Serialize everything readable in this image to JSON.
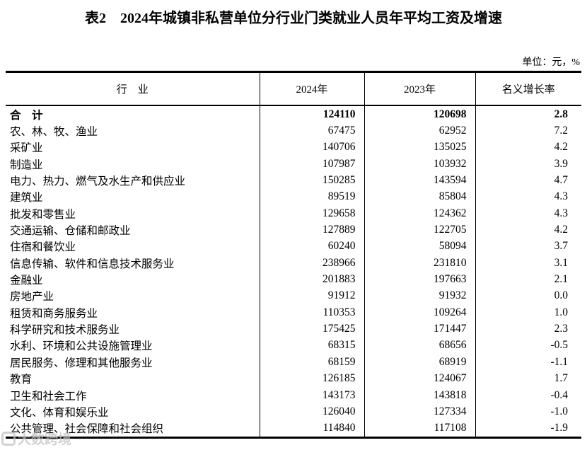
{
  "title": "表2　2024年城镇非私营单位分行业门类就业人员年平均工资及增速",
  "unit_note": "单位：元，%",
  "table": {
    "headers": {
      "industry": "行　业",
      "y2024": "2024年",
      "y2023": "2023年",
      "growth": "名义增长率"
    },
    "rows": [
      {
        "industry": "合　计",
        "y2024": "124110",
        "y2023": "120698",
        "growth": "2.8",
        "bold": true
      },
      {
        "industry": "农、林、牧、渔业",
        "y2024": "67475",
        "y2023": "62952",
        "growth": "7.2"
      },
      {
        "industry": "采矿业",
        "y2024": "140706",
        "y2023": "135025",
        "growth": "4.2"
      },
      {
        "industry": "制造业",
        "y2024": "107987",
        "y2023": "103932",
        "growth": "3.9"
      },
      {
        "industry": "电力、热力、燃气及水生产和供应业",
        "y2024": "150285",
        "y2023": "143594",
        "growth": "4.7"
      },
      {
        "industry": "建筑业",
        "y2024": "89519",
        "y2023": "85804",
        "growth": "4.3"
      },
      {
        "industry": "批发和零售业",
        "y2024": "129658",
        "y2023": "124362",
        "growth": "4.3"
      },
      {
        "industry": "交通运输、仓储和邮政业",
        "y2024": "127889",
        "y2023": "122705",
        "growth": "4.2"
      },
      {
        "industry": "住宿和餐饮业",
        "y2024": "60240",
        "y2023": "58094",
        "growth": "3.7"
      },
      {
        "industry": "信息传输、软件和信息技术服务业",
        "y2024": "238966",
        "y2023": "231810",
        "growth": "3.1"
      },
      {
        "industry": "金融业",
        "y2024": "201883",
        "y2023": "197663",
        "growth": "2.1"
      },
      {
        "industry": "房地产业",
        "y2024": "91912",
        "y2023": "91932",
        "growth": "0.0"
      },
      {
        "industry": "租赁和商务服务业",
        "y2024": "110353",
        "y2023": "109264",
        "growth": "1.0"
      },
      {
        "industry": "科学研究和技术服务业",
        "y2024": "175425",
        "y2023": "171447",
        "growth": "2.3"
      },
      {
        "industry": "水利、环境和公共设施管理业",
        "y2024": "68315",
        "y2023": "68656",
        "growth": "-0.5"
      },
      {
        "industry": "居民服务、修理和其他服务业",
        "y2024": "68159",
        "y2023": "68919",
        "growth": "-1.1"
      },
      {
        "industry": "教育",
        "y2024": "126185",
        "y2023": "124067",
        "growth": "1.7"
      },
      {
        "industry": "卫生和社会工作",
        "y2024": "143173",
        "y2023": "143818",
        "growth": "-0.4"
      },
      {
        "industry": "文化、体育和娱乐业",
        "y2024": "126040",
        "y2023": "127334",
        "growth": "-1.0"
      },
      {
        "industry": "公共管理、社会保障和社会组织",
        "y2024": "114840",
        "y2023": "117108",
        "growth": "-1.9"
      }
    ]
  },
  "watermark": {
    "text": "大数跨境"
  },
  "colors": {
    "text": "#000000",
    "border": "#000000",
    "background": "#ffffff",
    "watermark": "#c3c3c3"
  }
}
